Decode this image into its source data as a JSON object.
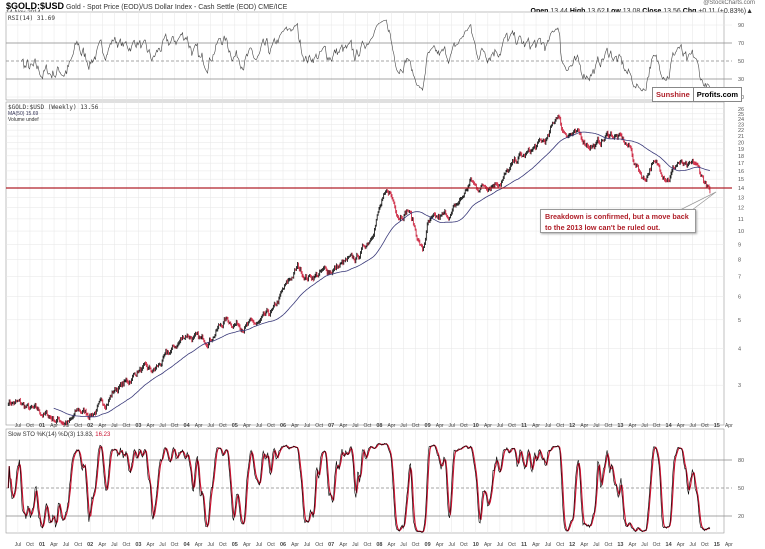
{
  "header": {
    "symbol": "$GOLD:$USD",
    "description": "Gold - Spot Price (EOD)/US Dollar Index - Cash Settle (EOD) CME/ICE",
    "date": "14-Nov-2014",
    "credit": "@StockCharts.com",
    "open_label": "Open",
    "open": "13.44",
    "high_label": "High",
    "high": "13.62",
    "low_label": "Low",
    "low": "13.08",
    "close_label": "Close",
    "close": "13.56",
    "chg_label": "Chg",
    "chg": "+0.11 (+0.83%)▲"
  },
  "branding": {
    "part1": "Sunshine",
    "part2": "Profits.com",
    "color1": "#b0202a"
  },
  "chart_data": [
    {
      "type": "line",
      "panel": "RSI",
      "legend": "RSI(14) 31.69",
      "yticks": [
        90,
        70,
        50,
        30,
        10
      ],
      "ylim": [
        5,
        95
      ],
      "reference_lines": [
        70,
        50,
        30
      ]
    },
    {
      "type": "line",
      "panel": "price",
      "legend": [
        "$GOLD:$USD (Weekly) 13.56",
        "MA(50) 15.69",
        "Volume undef"
      ],
      "yscale": "log",
      "ylim": [
        2.1,
        27
      ],
      "yticks": [
        26,
        25,
        24,
        23,
        22,
        21,
        20,
        19,
        18,
        17,
        16,
        15,
        14,
        13,
        12,
        11,
        10,
        9,
        8,
        7,
        6,
        5,
        4,
        3
      ],
      "horizontal_line": {
        "value": 14,
        "color": "#b0202a"
      },
      "up_color": "#000000",
      "down_color": "#c8102e",
      "ma_color": "#3a3a7a",
      "annotation": "Breakdown is confirmed, but a move back to the 2013 low can't be ruled out.",
      "points": [
        [
          2000.3,
          2.65
        ],
        [
          2000.5,
          2.6
        ],
        [
          2000.8,
          2.45
        ],
        [
          2001.0,
          2.4
        ],
        [
          2001.3,
          2.3
        ],
        [
          2001.6,
          2.25
        ],
        [
          2001.75,
          2.45
        ],
        [
          2002.0,
          2.4
        ],
        [
          2002.3,
          2.6
        ],
        [
          2002.5,
          2.9
        ],
        [
          2002.8,
          3.1
        ],
        [
          2003.0,
          3.4
        ],
        [
          2003.3,
          3.3
        ],
        [
          2003.5,
          3.6
        ],
        [
          2003.8,
          4.1
        ],
        [
          2004.0,
          4.5
        ],
        [
          2004.3,
          4.2
        ],
        [
          2004.5,
          4.4
        ],
        [
          2004.8,
          5.0
        ],
        [
          2005.0,
          4.9
        ],
        [
          2005.3,
          4.8
        ],
        [
          2005.5,
          4.8
        ],
        [
          2005.8,
          5.3
        ],
        [
          2006.0,
          6.2
        ],
        [
          2006.3,
          7.5
        ],
        [
          2006.5,
          7.0
        ],
        [
          2006.8,
          7.2
        ],
        [
          2007.0,
          7.4
        ],
        [
          2007.3,
          7.8
        ],
        [
          2007.5,
          7.9
        ],
        [
          2007.8,
          9.5
        ],
        [
          2008.0,
          12.0
        ],
        [
          2008.2,
          13.5
        ],
        [
          2008.4,
          11.5
        ],
        [
          2008.6,
          12.0
        ],
        [
          2008.75,
          10.0
        ],
        [
          2008.9,
          8.5
        ],
        [
          2009.0,
          10.5
        ],
        [
          2009.2,
          10.8
        ],
        [
          2009.5,
          11.5
        ],
        [
          2009.7,
          12.8
        ],
        [
          2009.9,
          14.8
        ],
        [
          2010.0,
          14.0
        ],
        [
          2010.3,
          14.6
        ],
        [
          2010.5,
          15.0
        ],
        [
          2010.7,
          16.0
        ],
        [
          2010.9,
          17.8
        ],
        [
          2011.0,
          17.8
        ],
        [
          2011.3,
          19.5
        ],
        [
          2011.5,
          20.5
        ],
        [
          2011.7,
          25.2
        ],
        [
          2011.8,
          22.0
        ],
        [
          2012.0,
          21.5
        ],
        [
          2012.3,
          20.0
        ],
        [
          2012.5,
          19.5
        ],
        [
          2012.8,
          21.5
        ],
        [
          2013.0,
          20.5
        ],
        [
          2013.2,
          19.0
        ],
        [
          2013.3,
          17.0
        ],
        [
          2013.5,
          15.0
        ],
        [
          2013.65,
          17.0
        ],
        [
          2013.8,
          16.3
        ],
        [
          2014.0,
          15.4
        ],
        [
          2014.2,
          17.2
        ],
        [
          2014.4,
          16.0
        ],
        [
          2014.55,
          16.7
        ],
        [
          2014.7,
          15.2
        ],
        [
          2014.8,
          14.1
        ],
        [
          2014.87,
          13.56
        ]
      ]
    },
    {
      "type": "line",
      "panel": "Slow STO",
      "legend": "Slow STO %K(14) %D(3) 13.83,",
      "legend_d": "16.23",
      "yticks": [
        80,
        50,
        20
      ],
      "ylim": [
        0,
        100
      ],
      "reference_lines": [
        80,
        50,
        20
      ],
      "k_color": "#000000",
      "d_color": "#c8102e"
    }
  ],
  "x_axis": {
    "ticks": [
      "Jul",
      "Oct",
      "01",
      "Apr",
      "Jul",
      "Oct",
      "02",
      "Apr",
      "Jul",
      "Oct",
      "03",
      "Apr",
      "Jul",
      "Oct",
      "04",
      "Apr",
      "Jul",
      "Oct",
      "05",
      "Apr",
      "Jul",
      "Oct",
      "06",
      "Apr",
      "Jul",
      "Oct",
      "07",
      "Apr",
      "Jul",
      "Oct",
      "08",
      "Apr",
      "Jul",
      "Oct",
      "09",
      "Apr",
      "Jul",
      "Oct",
      "10",
      "Apr",
      "Jul",
      "Oct",
      "11",
      "Apr",
      "Jul",
      "Oct",
      "12",
      "Apr",
      "Jul",
      "Oct",
      "13",
      "Apr",
      "Jul",
      "Oct",
      "14",
      "Apr",
      "Jul",
      "Oct",
      "15",
      "Apr"
    ]
  }
}
